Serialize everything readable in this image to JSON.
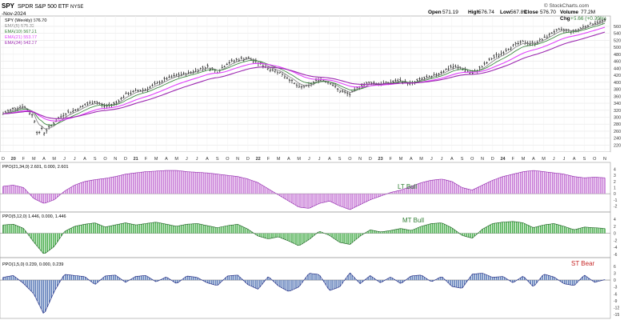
{
  "header": {
    "symbol": "SPY",
    "description": "SPDR S&P 500 ETF",
    "exchange": "NYSE",
    "date": "-Nov-2024",
    "open_label": "Open",
    "open": "571.19",
    "high_label": "High",
    "high": "576.74",
    "low_label": "Low",
    "low": "567.89",
    "close_label": "Close",
    "close": "576.70",
    "volume_label": "Volume",
    "volume": "77.2M",
    "change_label": "Chg",
    "change": "+5.66 (+0.99%)",
    "watermark": "© StockCharts.com"
  },
  "legend": [
    {
      "text": "SPY (Weekly) 576.70",
      "color": "#000000"
    },
    {
      "text": "EMA(5) 575.32",
      "color": "#7a7a7a"
    },
    {
      "text": "EMA(10) 567.21",
      "color": "#2e7d32"
    },
    {
      "text": "EMA(21) 553.77",
      "color": "#e040fb"
    },
    {
      "text": "EMA(34) 542.37",
      "color": "#9c27b0"
    }
  ],
  "panels_text": {
    "ppo_lt_label": "PPO(21,34,0) 2.601, 0.000, 2.601",
    "ppo_mt_label": "PPO(5,12,0) 1.446, 0.000, 1.446",
    "ppo_st_label": "PPO(1,5,0) 0.239, 0.000, 0.239",
    "lt_annotation": "LT Bull",
    "mt_annotation": "MT Bull",
    "st_annotation": "ST Bear"
  },
  "colors": {
    "price": "#111111",
    "ema5": "#7a7a7a",
    "ema10": "#2e7d32",
    "ema21": "#e040fb",
    "ema34": "#9c27b0",
    "lt_fill": "#c77ad6",
    "lt_stroke": "#8e24aa",
    "mt_fill": "#4caf50",
    "mt_stroke": "#1b5e20",
    "st_fill": "#5b7bb8",
    "st_stroke": "#1a237e",
    "lt_text": "#2e7d32",
    "mt_text": "#2e7d32",
    "st_text": "#c62828"
  },
  "chart_data": {
    "type": "line",
    "series_kind": "weekly OHLC price with exponential moving averages and three PPO histograms",
    "x_axis": {
      "month_ticks": [
        "D",
        "20",
        "F",
        "M",
        "A",
        "M",
        "J",
        "J",
        "A",
        "S",
        "O",
        "N",
        "D",
        "21",
        "F",
        "M",
        "A",
        "M",
        "J",
        "J",
        "A",
        "S",
        "O",
        "N",
        "D",
        "22",
        "F",
        "M",
        "A",
        "M",
        "J",
        "J",
        "A",
        "S",
        "O",
        "N",
        "D",
        "23",
        "F",
        "M",
        "A",
        "M",
        "J",
        "J",
        "A",
        "S",
        "O",
        "N",
        "D",
        "24",
        "F",
        "M",
        "A",
        "M",
        "J",
        "J",
        "A",
        "S",
        "O",
        "N"
      ],
      "x_range": [
        0,
        59
      ]
    },
    "price_panel": {
      "y_ticks": [
        220,
        240,
        260,
        280,
        300,
        320,
        340,
        360,
        380,
        400,
        420,
        440,
        460,
        480,
        500,
        520,
        540,
        560
      ],
      "ylim": [
        205,
        585
      ],
      "points": [
        [
          0,
          310
        ],
        [
          1,
          325
        ],
        [
          2,
          332
        ],
        [
          3,
          300
        ],
        [
          3.4,
          245
        ],
        [
          3.8,
          270
        ],
        [
          4,
          255
        ],
        [
          5,
          285
        ],
        [
          6,
          310
        ],
        [
          7,
          320
        ],
        [
          8,
          335
        ],
        [
          9,
          345
        ],
        [
          10,
          330
        ],
        [
          11,
          340
        ],
        [
          12,
          365
        ],
        [
          13,
          375
        ],
        [
          14,
          380
        ],
        [
          15,
          395
        ],
        [
          16,
          410
        ],
        [
          17,
          420
        ],
        [
          18,
          425
        ],
        [
          19,
          435
        ],
        [
          20,
          445
        ],
        [
          21,
          430
        ],
        [
          22,
          455
        ],
        [
          23,
          465
        ],
        [
          24,
          470
        ],
        [
          25,
          455
        ],
        [
          26,
          440
        ],
        [
          27,
          430
        ],
        [
          28,
          410
        ],
        [
          29,
          385
        ],
        [
          30,
          390
        ],
        [
          31,
          410
        ],
        [
          32,
          400
        ],
        [
          33,
          375
        ],
        [
          34,
          365
        ],
        [
          35,
          390
        ],
        [
          36,
          400
        ],
        [
          37,
          395
        ],
        [
          38,
          400
        ],
        [
          39,
          405
        ],
        [
          40,
          395
        ],
        [
          41,
          410
        ],
        [
          42,
          415
        ],
        [
          43,
          430
        ],
        [
          44,
          445
        ],
        [
          45,
          440
        ],
        [
          46,
          425
        ],
        [
          47,
          445
        ],
        [
          48,
          470
        ],
        [
          49,
          485
        ],
        [
          50,
          505
        ],
        [
          51,
          515
        ],
        [
          52,
          510
        ],
        [
          53,
          525
        ],
        [
          54,
          545
        ],
        [
          55,
          550
        ],
        [
          56,
          545
        ],
        [
          57,
          560
        ],
        [
          58,
          570
        ],
        [
          59,
          577
        ]
      ],
      "ema_values_last": {
        "EMA(5)": 575.32,
        "EMA(10)": 567.21,
        "EMA(21)": 553.77,
        "EMA(34)": 542.37
      }
    },
    "ppo_lt": {
      "y_ticks": [
        -2,
        -1,
        0,
        1,
        2,
        3,
        4
      ],
      "ylim": [
        -2.6,
        4.2
      ],
      "points": [
        [
          0,
          1.2
        ],
        [
          1,
          1.4
        ],
        [
          2,
          1.0
        ],
        [
          3,
          -0.8
        ],
        [
          4,
          -1.6
        ],
        [
          5,
          -1.0
        ],
        [
          6,
          0.4
        ],
        [
          7,
          1.4
        ],
        [
          8,
          2.0
        ],
        [
          9,
          2.3
        ],
        [
          10,
          2.5
        ],
        [
          11,
          2.8
        ],
        [
          12,
          3.2
        ],
        [
          13,
          3.4
        ],
        [
          14,
          3.6
        ],
        [
          15,
          3.7
        ],
        [
          16,
          3.8
        ],
        [
          17,
          3.8
        ],
        [
          18,
          3.6
        ],
        [
          19,
          3.5
        ],
        [
          20,
          3.4
        ],
        [
          21,
          3.2
        ],
        [
          22,
          3.0
        ],
        [
          23,
          2.8
        ],
        [
          24,
          2.4
        ],
        [
          25,
          1.8
        ],
        [
          26,
          0.8
        ],
        [
          27,
          -0.2
        ],
        [
          28,
          -1.2
        ],
        [
          29,
          -2.2
        ],
        [
          30,
          -2.4
        ],
        [
          31,
          -1.6
        ],
        [
          32,
          -1.2
        ],
        [
          33,
          -2.0
        ],
        [
          34,
          -2.6
        ],
        [
          35,
          -1.8
        ],
        [
          36,
          -1.0
        ],
        [
          37,
          -0.4
        ],
        [
          38,
          0.2
        ],
        [
          39,
          0.6
        ],
        [
          40,
          1.2
        ],
        [
          41,
          1.8
        ],
        [
          42,
          2.2
        ],
        [
          43,
          2.4
        ],
        [
          44,
          2.0
        ],
        [
          45,
          1.0
        ],
        [
          46,
          0.6
        ],
        [
          47,
          1.4
        ],
        [
          48,
          2.2
        ],
        [
          49,
          2.8
        ],
        [
          50,
          3.2
        ],
        [
          51,
          3.6
        ],
        [
          52,
          3.8
        ],
        [
          53,
          3.6
        ],
        [
          54,
          3.4
        ],
        [
          55,
          3.2
        ],
        [
          56,
          2.8
        ],
        [
          57,
          2.6
        ],
        [
          58,
          2.7
        ],
        [
          59,
          2.6
        ]
      ]
    },
    "ppo_mt": {
      "y_ticks": [
        -6,
        -4,
        -2,
        0,
        2,
        4
      ],
      "ylim": [
        -6.5,
        4.5
      ],
      "points": [
        [
          0,
          2.4
        ],
        [
          1,
          2.6
        ],
        [
          2,
          1.4
        ],
        [
          3,
          -2.5
        ],
        [
          4,
          -6.0
        ],
        [
          5,
          -3.8
        ],
        [
          6,
          0.5
        ],
        [
          7,
          2.0
        ],
        [
          8,
          2.6
        ],
        [
          9,
          3.0
        ],
        [
          10,
          1.8
        ],
        [
          11,
          2.4
        ],
        [
          12,
          3.0
        ],
        [
          13,
          2.4
        ],
        [
          14,
          2.8
        ],
        [
          15,
          3.2
        ],
        [
          16,
          2.6
        ],
        [
          17,
          2.0
        ],
        [
          18,
          2.6
        ],
        [
          19,
          2.8
        ],
        [
          20,
          2.2
        ],
        [
          21,
          1.6
        ],
        [
          22,
          2.2
        ],
        [
          23,
          2.6
        ],
        [
          24,
          1.2
        ],
        [
          25,
          -0.8
        ],
        [
          26,
          -1.6
        ],
        [
          27,
          -1.0
        ],
        [
          28,
          -2.2
        ],
        [
          29,
          -3.6
        ],
        [
          30,
          -1.8
        ],
        [
          31,
          0.6
        ],
        [
          32,
          -0.6
        ],
        [
          33,
          -2.6
        ],
        [
          34,
          -3.2
        ],
        [
          35,
          -0.8
        ],
        [
          36,
          1.0
        ],
        [
          37,
          0.4
        ],
        [
          38,
          0.8
        ],
        [
          39,
          1.4
        ],
        [
          40,
          0.8
        ],
        [
          41,
          2.0
        ],
        [
          42,
          2.8
        ],
        [
          43,
          3.0
        ],
        [
          44,
          1.6
        ],
        [
          45,
          -0.6
        ],
        [
          46,
          -1.4
        ],
        [
          47,
          1.2
        ],
        [
          48,
          2.8
        ],
        [
          49,
          3.2
        ],
        [
          50,
          3.4
        ],
        [
          51,
          3.0
        ],
        [
          52,
          1.6
        ],
        [
          53,
          2.4
        ],
        [
          54,
          2.8
        ],
        [
          55,
          2.0
        ],
        [
          56,
          1.0
        ],
        [
          57,
          1.8
        ],
        [
          58,
          1.6
        ],
        [
          59,
          1.4
        ]
      ]
    },
    "ppo_st": {
      "y_ticks": [
        6,
        3,
        0,
        -3,
        -6,
        -9,
        -12,
        -15
      ],
      "ylim": [
        -16,
        7
      ],
      "points": [
        [
          0,
          1.2
        ],
        [
          1,
          2.0
        ],
        [
          2,
          -1.5
        ],
        [
          3,
          -6.0
        ],
        [
          4,
          -15.0
        ],
        [
          5,
          -5.0
        ],
        [
          6,
          2.5
        ],
        [
          7,
          2.0
        ],
        [
          8,
          1.5
        ],
        [
          9,
          -2.0
        ],
        [
          10,
          1.8
        ],
        [
          11,
          2.2
        ],
        [
          12,
          -1.0
        ],
        [
          13,
          1.6
        ],
        [
          14,
          2.0
        ],
        [
          15,
          -0.8
        ],
        [
          16,
          1.4
        ],
        [
          17,
          -1.6
        ],
        [
          18,
          1.8
        ],
        [
          19,
          1.2
        ],
        [
          20,
          -1.2
        ],
        [
          21,
          -2.4
        ],
        [
          22,
          1.8
        ],
        [
          23,
          2.2
        ],
        [
          24,
          -2.0
        ],
        [
          25,
          -4.0
        ],
        [
          26,
          1.6
        ],
        [
          27,
          -2.6
        ],
        [
          28,
          -5.0
        ],
        [
          29,
          -3.0
        ],
        [
          30,
          3.0
        ],
        [
          31,
          2.4
        ],
        [
          32,
          -4.6
        ],
        [
          33,
          -3.0
        ],
        [
          34,
          3.2
        ],
        [
          35,
          -1.6
        ],
        [
          36,
          2.0
        ],
        [
          37,
          -1.2
        ],
        [
          38,
          1.4
        ],
        [
          39,
          -1.6
        ],
        [
          40,
          1.8
        ],
        [
          41,
          2.2
        ],
        [
          42,
          -0.8
        ],
        [
          43,
          1.6
        ],
        [
          44,
          -2.8
        ],
        [
          45,
          -3.6
        ],
        [
          46,
          2.6
        ],
        [
          47,
          3.0
        ],
        [
          48,
          1.2
        ],
        [
          49,
          1.6
        ],
        [
          50,
          -1.2
        ],
        [
          51,
          1.8
        ],
        [
          52,
          -3.0
        ],
        [
          53,
          2.6
        ],
        [
          54,
          1.4
        ],
        [
          55,
          -1.6
        ],
        [
          56,
          -2.4
        ],
        [
          57,
          2.2
        ],
        [
          58,
          -1.0
        ],
        [
          59,
          0.2
        ]
      ]
    }
  }
}
